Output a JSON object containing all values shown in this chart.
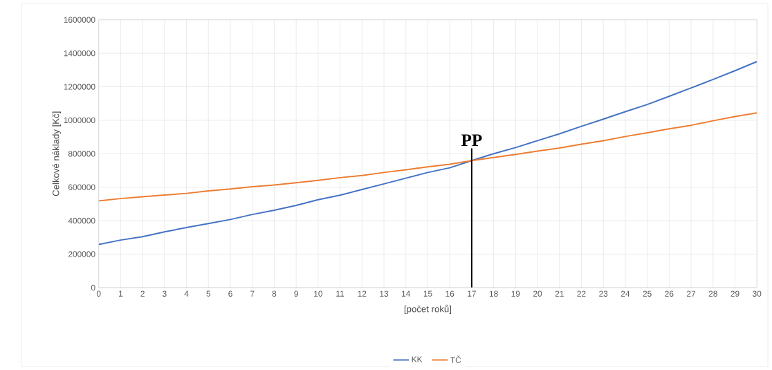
{
  "chart_data": {
    "type": "line",
    "xlabel": "[počet roků]",
    "ylabel": "Celkové náklady [Kč]",
    "x": [
      0,
      1,
      2,
      3,
      4,
      5,
      6,
      7,
      8,
      9,
      10,
      11,
      12,
      13,
      14,
      15,
      16,
      17,
      18,
      19,
      20,
      21,
      22,
      23,
      24,
      25,
      26,
      27,
      28,
      29,
      30
    ],
    "series": [
      {
        "name": "KK",
        "color": "#4472c4",
        "values": [
          258000,
          284000,
          304000,
          333000,
          359000,
          383000,
          407000,
          437000,
          462000,
          491000,
          525000,
          552000,
          586000,
          620000,
          654000,
          688000,
          716000,
          759000,
          800000,
          837000,
          878000,
          919000,
          964000,
          1007000,
          1051000,
          1094000,
          1143000,
          1193000,
          1244000,
          1296000,
          1351000
        ]
      },
      {
        "name": "TČ",
        "color": "#ed7d31",
        "values": [
          518000,
          532000,
          543000,
          553000,
          563000,
          578000,
          589000,
          603000,
          613000,
          627000,
          641000,
          657000,
          670000,
          688000,
          704000,
          722000,
          737000,
          759000,
          777000,
          796000,
          816000,
          834000,
          857000,
          878000,
          903000,
          925000,
          949000,
          970000,
          997000,
          1022000,
          1044000
        ]
      }
    ],
    "xlim": [
      0,
      30
    ],
    "xticks": [
      0,
      1,
      2,
      3,
      4,
      5,
      6,
      7,
      8,
      9,
      10,
      11,
      12,
      13,
      14,
      15,
      16,
      17,
      18,
      19,
      20,
      21,
      22,
      23,
      24,
      25,
      26,
      27,
      28,
      29,
      30
    ],
    "ylim": [
      0,
      1600000
    ],
    "yticks": [
      0,
      200000,
      400000,
      600000,
      800000,
      1000000,
      1200000,
      1400000,
      1600000
    ],
    "ref_lines": [
      {
        "axis": "x",
        "value": 17,
        "label": "PP",
        "color": "#000000"
      }
    ],
    "grid": true,
    "legend": "bottom",
    "marker": "none",
    "line_style": "solid"
  }
}
